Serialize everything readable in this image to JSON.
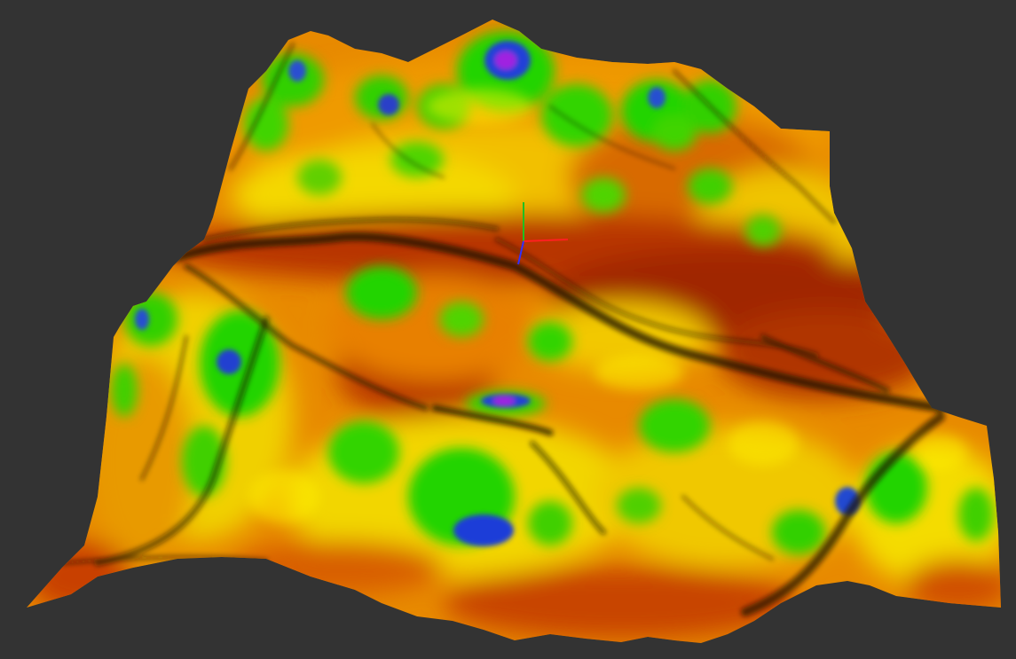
{
  "viewport": {
    "background_color": "#333333",
    "surface_palette": {
      "deep_red": "#8a1a00",
      "red": "#b83000",
      "orange": "#e07800",
      "yellow": "#f4e600",
      "green": "#22d400",
      "blue": "#1c3cd8",
      "violet": "#9a1ad8",
      "shadow": "#141000"
    },
    "axis_gizmo": {
      "x_color": "#ff2020",
      "y_color": "#20c020",
      "z_color": "#3030ff"
    }
  }
}
